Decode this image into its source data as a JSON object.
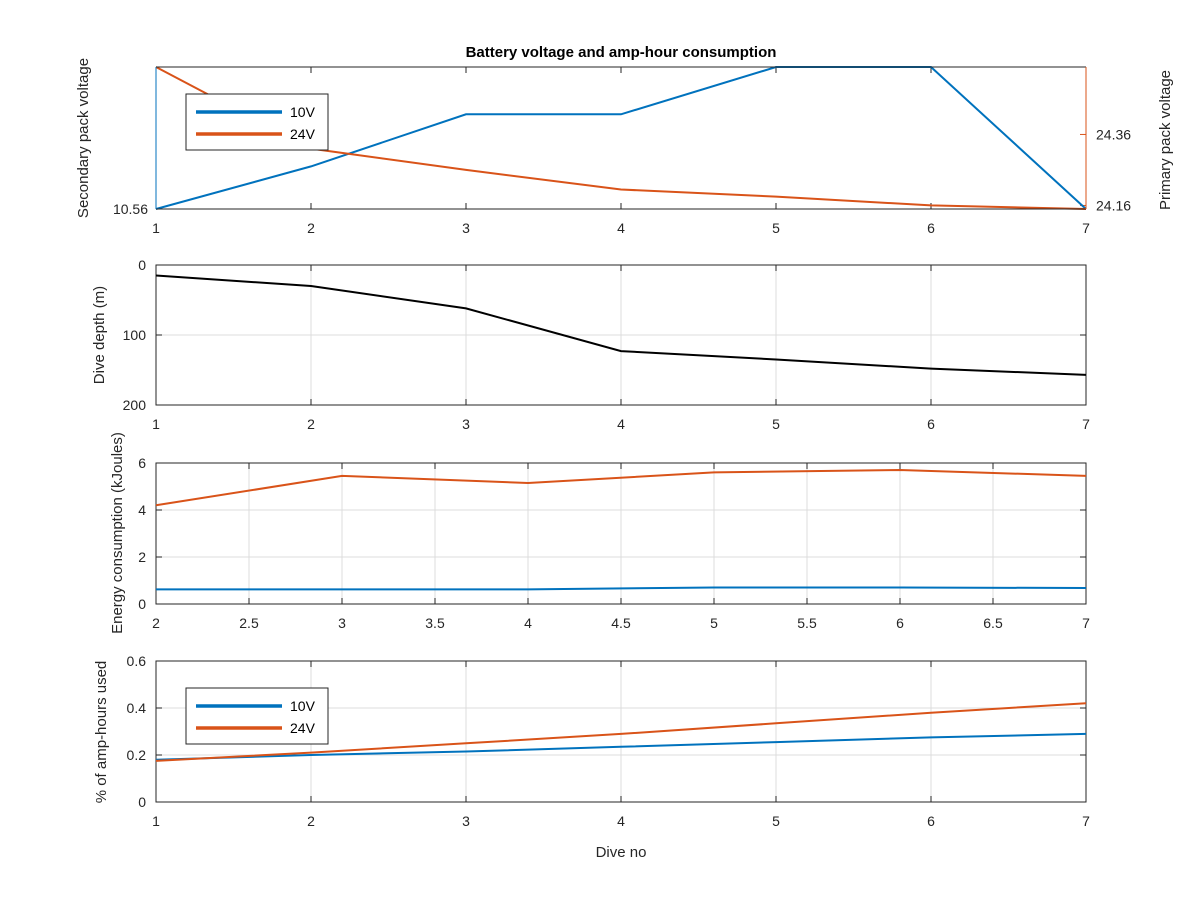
{
  "colors": {
    "c10": "#0072BD",
    "c24": "#D95319",
    "depth": "#000000",
    "grid": "#DCDCDC",
    "axis": "#262626"
  },
  "chart_data": [
    {
      "type": "line",
      "title": "Battery voltage and amp-hour consumption",
      "xlabel": "",
      "x": [
        1,
        2,
        3,
        4,
        5,
        6,
        7
      ],
      "xlim": [
        1,
        7
      ],
      "xticks": [
        "1",
        "2",
        "3",
        "4",
        "5",
        "6",
        "7"
      ],
      "ylabel_left": "Secondary pack voltage",
      "ylabel_right": "Primary pack voltage",
      "yticks_left": [
        "10.56"
      ],
      "yticks_right": [
        "24.36",
        "24.16"
      ],
      "legend": "top-left",
      "grid": false,
      "series": [
        {
          "name": "10V",
          "axis": "left",
          "ylim": [
            10.56,
            10.86
          ],
          "values": [
            10.56,
            10.65,
            10.76,
            10.76,
            10.86,
            10.86,
            10.56
          ]
        },
        {
          "name": "24V",
          "axis": "right",
          "ylim": [
            24.15,
            24.55
          ],
          "values": [
            24.55,
            24.32,
            24.26,
            24.205,
            24.185,
            24.16,
            24.15
          ]
        }
      ]
    },
    {
      "type": "line",
      "xlabel": "",
      "ylabel": "Dive depth (m)",
      "ylim": [
        0,
        200
      ],
      "y_reversed": true,
      "yticks": [
        "0",
        "100",
        "200"
      ],
      "xlim": [
        1,
        7
      ],
      "xticks": [
        "1",
        "2",
        "3",
        "4",
        "5",
        "6",
        "7"
      ],
      "grid": true,
      "x": [
        1,
        2,
        3,
        4,
        5,
        6,
        7
      ],
      "series": [
        {
          "values": [
            15,
            30,
            62,
            123,
            135,
            148,
            157
          ]
        }
      ]
    },
    {
      "type": "line",
      "xlabel": "",
      "ylabel": "Energy consumption (kJoules)",
      "ylim": [
        0,
        6
      ],
      "yticks": [
        "0",
        "2",
        "4",
        "6"
      ],
      "xlim": [
        2,
        7
      ],
      "xticks": [
        "2",
        "2.5",
        "3",
        "3.5",
        "4",
        "4.5",
        "5",
        "5.5",
        "6",
        "6.5",
        "7"
      ],
      "grid": true,
      "x": [
        2,
        3,
        4,
        5,
        6,
        7
      ],
      "series": [
        {
          "name": "24V",
          "values": [
            4.2,
            5.45,
            5.15,
            5.6,
            5.7,
            5.45
          ]
        },
        {
          "name": "10V",
          "values": [
            0.62,
            0.62,
            0.62,
            0.7,
            0.7,
            0.68
          ]
        }
      ]
    },
    {
      "type": "line",
      "xlabel": "Dive no",
      "ylabel": "% of amp-hours used",
      "ylim": [
        0,
        0.6
      ],
      "yticks": [
        "0",
        "0.2",
        "0.4",
        "0.6"
      ],
      "xlim": [
        1,
        7
      ],
      "xticks": [
        "1",
        "2",
        "3",
        "4",
        "5",
        "6",
        "7"
      ],
      "grid": true,
      "legend": "top-left",
      "x": [
        1,
        2,
        3,
        4,
        5,
        6,
        7
      ],
      "series": [
        {
          "name": "10V",
          "values": [
            0.18,
            0.2,
            0.215,
            0.235,
            0.255,
            0.275,
            0.29
          ]
        },
        {
          "name": "24V",
          "values": [
            0.175,
            0.21,
            0.25,
            0.29,
            0.335,
            0.38,
            0.42
          ]
        }
      ]
    }
  ]
}
